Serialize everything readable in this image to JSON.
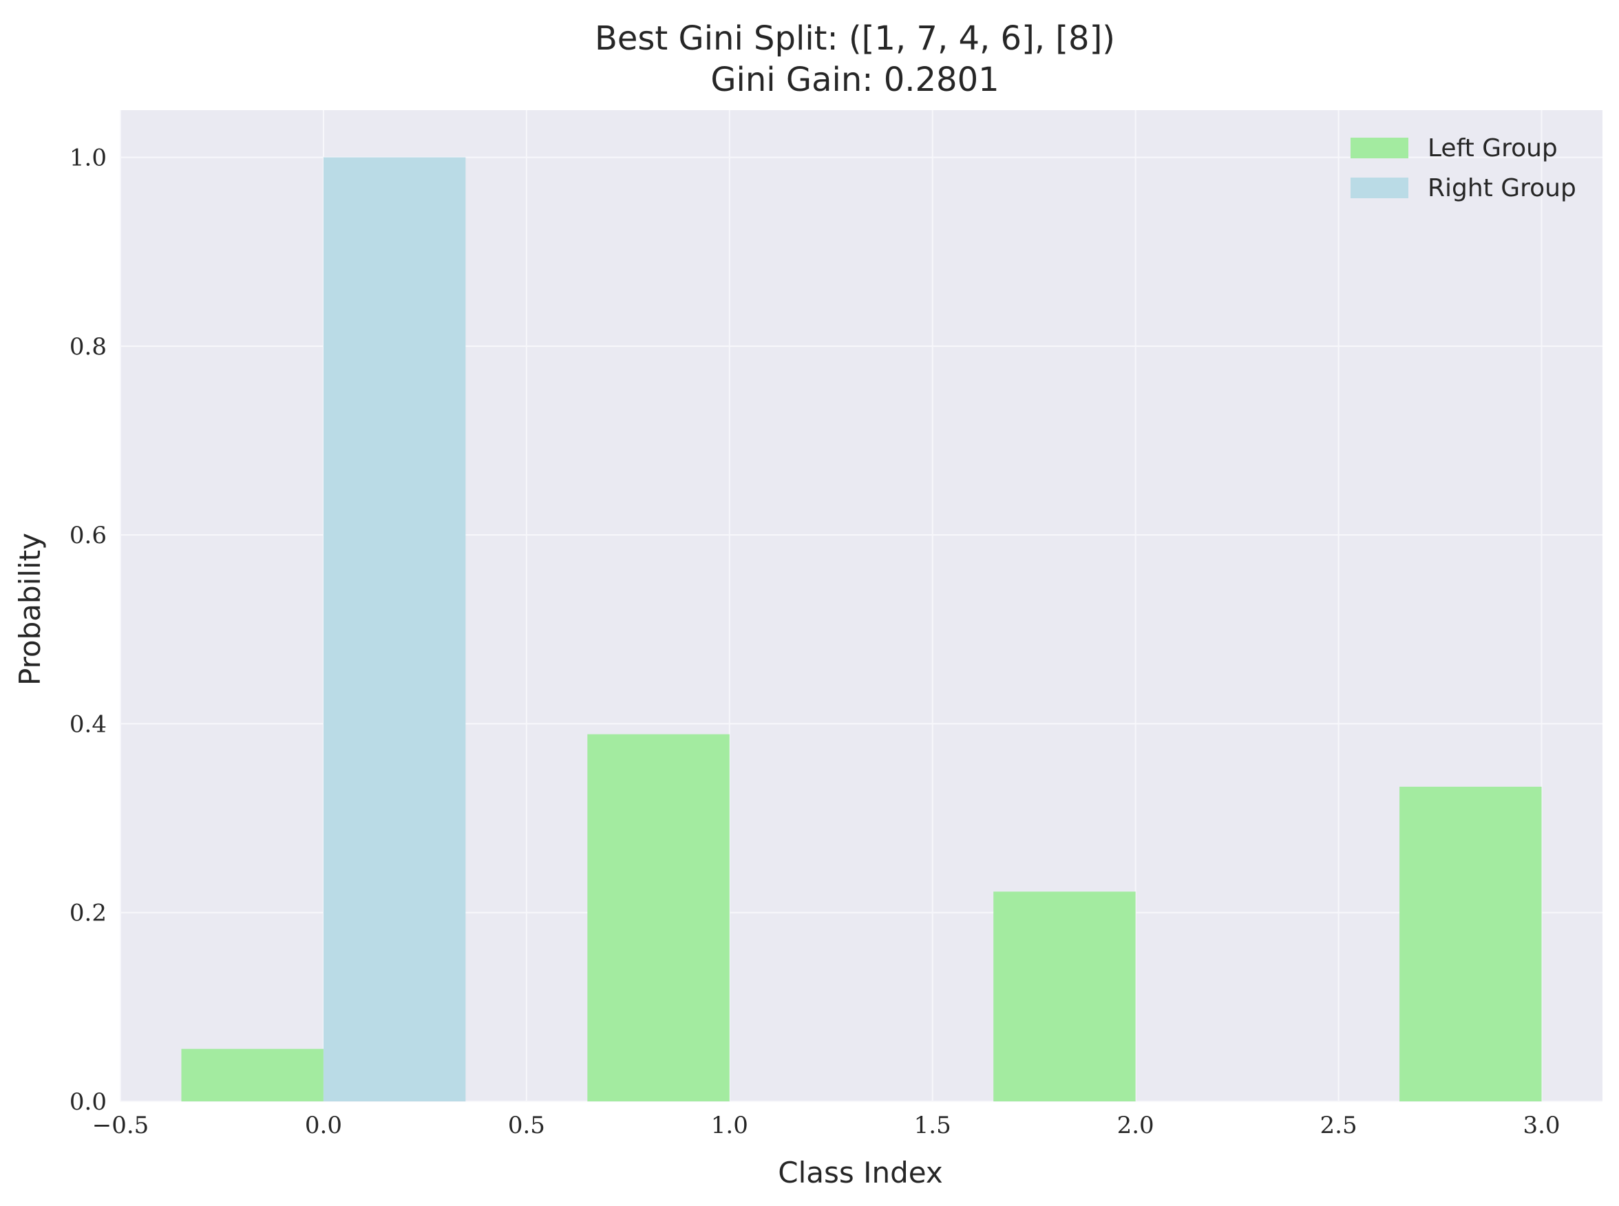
{
  "chart_data": {
    "type": "bar",
    "title": "Best Gini Split: ([1, 7, 4, 6], [8])",
    "subtitle": "Gini Gain: 0.2801",
    "xlabel": "Class Index",
    "ylabel": "Probability",
    "xlim": [
      -0.5,
      3.15
    ],
    "ylim": [
      0,
      1.05
    ],
    "grid": true,
    "legend_position": "top-right",
    "x_ticks": [
      -0.5,
      0.0,
      0.5,
      1.0,
      1.5,
      2.0,
      2.5,
      3.0
    ],
    "x_tick_labels": [
      "−0.5",
      "0.0",
      "0.5",
      "1.0",
      "1.5",
      "2.0",
      "2.5",
      "3.0"
    ],
    "y_ticks": [
      0.0,
      0.2,
      0.4,
      0.6,
      0.8,
      1.0
    ],
    "y_tick_labels": [
      "0.0",
      "0.2",
      "0.4",
      "0.6",
      "0.8",
      "1.0"
    ],
    "bar_width": 0.35,
    "categories": [
      0,
      1,
      2,
      3
    ],
    "series": [
      {
        "name": "Left Group",
        "color": "#a3eba0",
        "offset": "left",
        "values": [
          0.0556,
          0.3889,
          0.2222,
          0.3333
        ]
      },
      {
        "name": "Right Group",
        "color": "#badbe6",
        "offset": "right",
        "values": [
          1.0,
          0.0,
          0.0,
          0.0
        ]
      }
    ],
    "colors": {
      "background": "#eaeaf2",
      "grid": "#f7f7fb",
      "text": "#262626"
    }
  }
}
